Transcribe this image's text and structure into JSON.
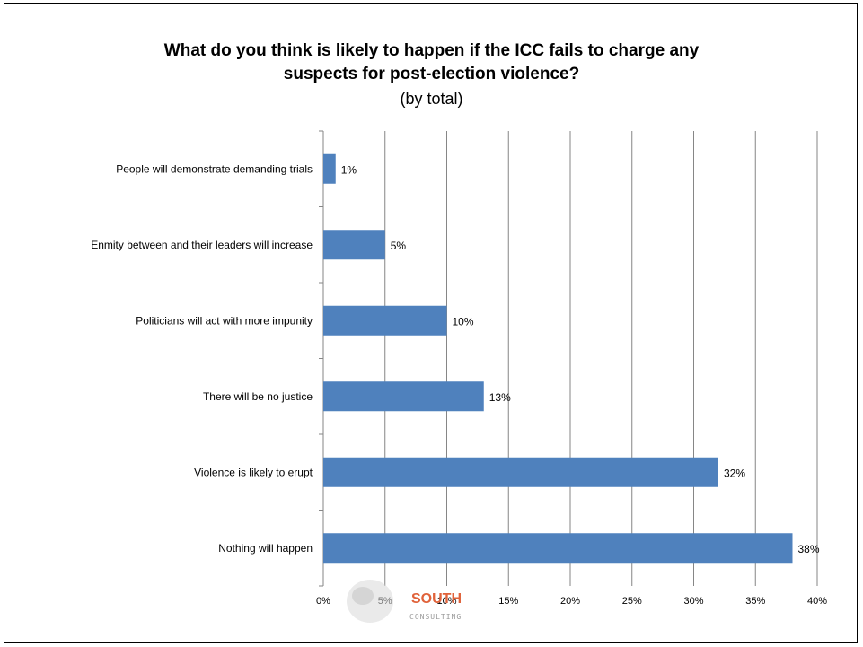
{
  "chart_data": {
    "type": "bar",
    "orientation": "horizontal",
    "title_lines": [
      "What do you think is likely to happen if the ICC fails to charge any",
      "suspects for post-election violence?"
    ],
    "subtitle": "(by total)",
    "categories": [
      "People will demonstrate demanding trials",
      "Enmity between and their leaders will increase",
      "Politicians will act with more impunity",
      "There will be no justice",
      "Violence is likely to erupt",
      "Nothing will happen"
    ],
    "values": [
      1,
      5,
      10,
      13,
      32,
      38
    ],
    "data_labels": [
      "1%",
      "5%",
      "10%",
      "13%",
      "32%",
      "38%"
    ],
    "x_ticks": [
      "0%",
      "5%",
      "10%",
      "15%",
      "20%",
      "25%",
      "30%",
      "35%",
      "40%"
    ],
    "xlim": [
      0,
      40
    ],
    "grid": true,
    "bar_color": "#4f81bd"
  },
  "logo": {
    "name": "SOUTH",
    "sub": "CONSULTING"
  }
}
